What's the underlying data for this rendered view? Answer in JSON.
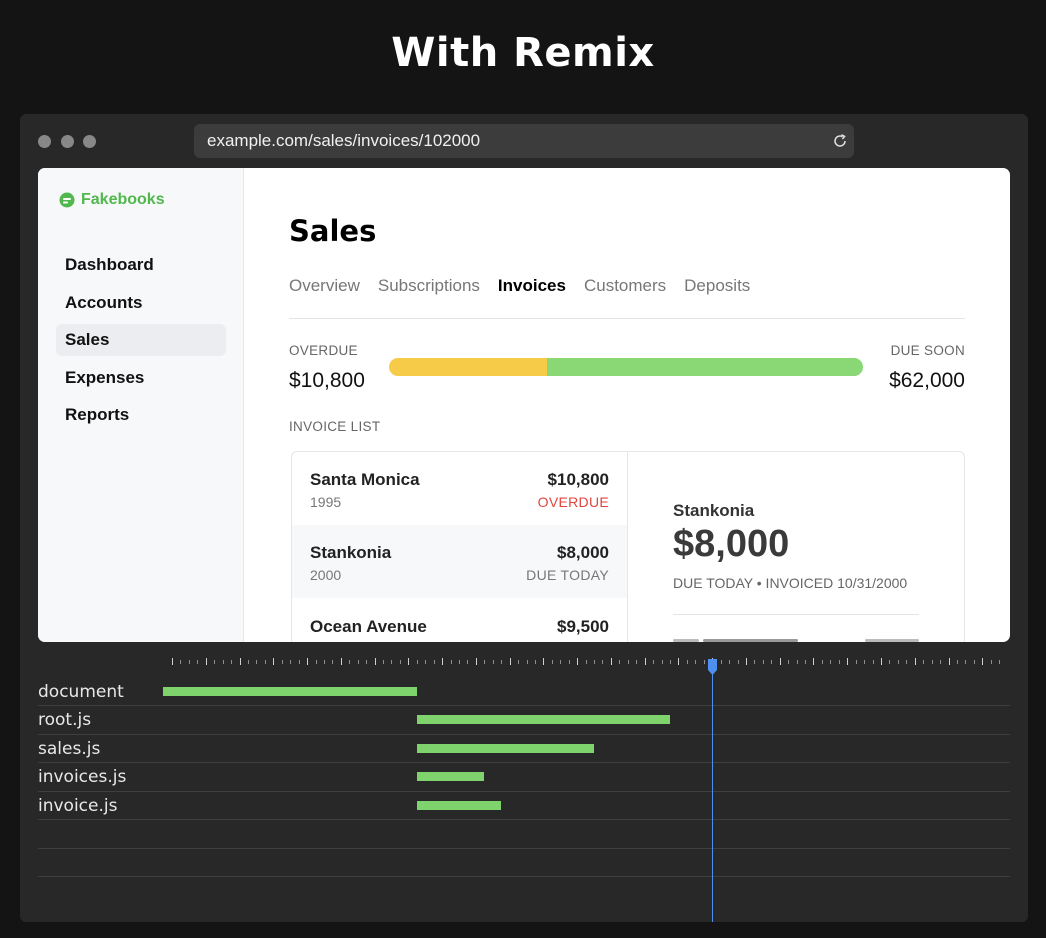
{
  "headline": "With Remix",
  "browser": {
    "url": "example.com/sales/invoices/102000",
    "reload_icon": "reload-icon"
  },
  "app": {
    "brand": "Fakebooks",
    "nav": [
      {
        "label": "Dashboard",
        "active": false
      },
      {
        "label": "Accounts",
        "active": false
      },
      {
        "label": "Sales",
        "active": true
      },
      {
        "label": "Expenses",
        "active": false
      },
      {
        "label": "Reports",
        "active": false
      }
    ],
    "title": "Sales",
    "tabs": [
      {
        "label": "Overview",
        "active": false
      },
      {
        "label": "Subscriptions",
        "active": false
      },
      {
        "label": "Invoices",
        "active": true
      },
      {
        "label": "Customers",
        "active": false
      },
      {
        "label": "Deposits",
        "active": false
      }
    ],
    "summary": {
      "overdue_label": "OVERDUE",
      "overdue_amount": "$10,800",
      "due_soon_label": "DUE SOON",
      "due_soon_amount": "$62,000",
      "overdue_fraction": 0.333,
      "colors": {
        "overdue": "#f6cb47",
        "due_soon": "#89d775"
      }
    },
    "invoice_list_label": "INVOICE LIST",
    "invoices": [
      {
        "name": "Santa Monica",
        "year": "1995",
        "amount": "$10,800",
        "status": "OVERDUE",
        "selected": false
      },
      {
        "name": "Stankonia",
        "year": "2000",
        "amount": "$8,000",
        "status": "DUE TODAY",
        "selected": true
      },
      {
        "name": "Ocean Avenue",
        "year": "",
        "amount": "$9,500",
        "status": "",
        "selected": false
      }
    ],
    "detail": {
      "name": "Stankonia",
      "amount": "$8,000",
      "meta": "DUE TODAY • INVOICED 10/31/2000"
    }
  },
  "network": {
    "rows": [
      {
        "label": "document",
        "start": 0.0,
        "end": 0.3
      },
      {
        "label": "root.js",
        "start": 0.3,
        "end": 0.6
      },
      {
        "label": "sales.js",
        "start": 0.3,
        "end": 0.51
      },
      {
        "label": "invoices.js",
        "start": 0.3,
        "end": 0.38
      },
      {
        "label": "invoice.js",
        "start": 0.3,
        "end": 0.4
      }
    ],
    "cursor_position": 0.65,
    "colors": {
      "bar": "#7ed36d",
      "cursor": "#4f8ff0"
    }
  }
}
